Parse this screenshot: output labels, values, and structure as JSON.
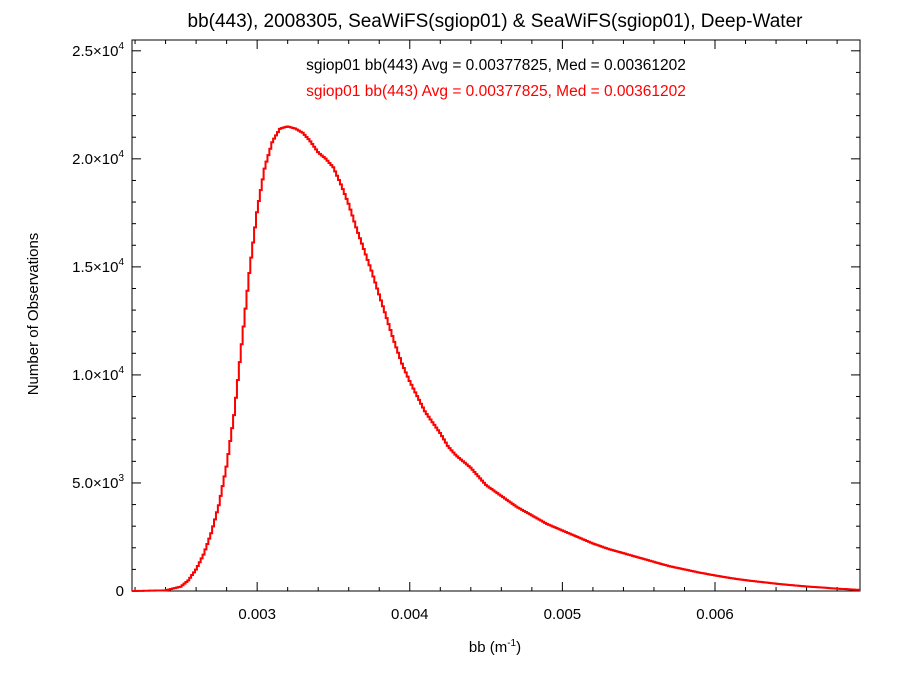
{
  "chart_data": {
    "type": "histogram",
    "title": "bb(443), 2008305, SeaWiFS(sgiop01) & SeaWiFS(sgiop01), Deep-Water",
    "xlabel": "bb (m",
    "xlabel_sup": "-1",
    "xlabel_close": ")",
    "ylabel": "Number of Observations",
    "xlim": [
      0.00218,
      0.00695
    ],
    "ylim": [
      0,
      25500
    ],
    "x_ticks": [
      {
        "value": 0.003,
        "label": "0.003"
      },
      {
        "value": 0.004,
        "label": "0.004"
      },
      {
        "value": 0.005,
        "label": "0.005"
      },
      {
        "value": 0.006,
        "label": "0.006"
      }
    ],
    "y_ticks": [
      {
        "value": 0,
        "mant": "0",
        "exp": ""
      },
      {
        "value": 5000,
        "mant": "5.0×10",
        "exp": "3"
      },
      {
        "value": 10000,
        "mant": "1.0×10",
        "exp": "4"
      },
      {
        "value": 15000,
        "mant": "1.5×10",
        "exp": "4"
      },
      {
        "value": 20000,
        "mant": "2.0×10",
        "exp": "4"
      },
      {
        "value": 25000,
        "mant": "2.5×10",
        "exp": "4"
      }
    ],
    "grid": false,
    "legend_position": "top-center",
    "series": [
      {
        "name": "sgiop01 bb(443) Avg = 0.00377825, Med = 0.00361202",
        "color": "#000000",
        "x": [
          0.0022,
          0.0024,
          0.0025,
          0.00255,
          0.0026,
          0.00265,
          0.0027,
          0.00275,
          0.0028,
          0.00285,
          0.0029,
          0.00295,
          0.003,
          0.00305,
          0.0031,
          0.00315,
          0.0032,
          0.00325,
          0.0033,
          0.00335,
          0.0034,
          0.00345,
          0.0035,
          0.00355,
          0.0036,
          0.00365,
          0.0037,
          0.00375,
          0.0038,
          0.00385,
          0.0039,
          0.00395,
          0.004,
          0.00405,
          0.0041,
          0.00415,
          0.0042,
          0.00425,
          0.0043,
          0.00435,
          0.0044,
          0.00445,
          0.0045,
          0.0046,
          0.0047,
          0.0048,
          0.0049,
          0.005,
          0.0051,
          0.0052,
          0.0053,
          0.0054,
          0.0055,
          0.0056,
          0.0057,
          0.0058,
          0.0059,
          0.006,
          0.0061,
          0.0062,
          0.0063,
          0.0064,
          0.0065,
          0.0066,
          0.0067,
          0.0068,
          0.0069,
          0.00695
        ],
        "y": [
          0,
          30,
          200,
          500,
          1000,
          1700,
          2700,
          4000,
          5800,
          8200,
          11500,
          14800,
          17600,
          19600,
          20800,
          21400,
          21500,
          21400,
          21200,
          20800,
          20300,
          20000,
          19600,
          18800,
          17900,
          16800,
          15800,
          14800,
          13700,
          12600,
          11500,
          10500,
          9700,
          9000,
          8300,
          7800,
          7300,
          6700,
          6300,
          6000,
          5700,
          5300,
          4900,
          4400,
          3900,
          3500,
          3100,
          2800,
          2500,
          2200,
          1950,
          1750,
          1550,
          1350,
          1150,
          1000,
          850,
          720,
          600,
          500,
          420,
          340,
          270,
          210,
          160,
          110,
          70,
          50
        ]
      },
      {
        "name": "sgiop01 bb(443) Avg = 0.00377825, Med = 0.00361202",
        "color": "#ff0000",
        "x": [
          0.0022,
          0.0024,
          0.0025,
          0.00255,
          0.0026,
          0.00265,
          0.0027,
          0.00275,
          0.0028,
          0.00285,
          0.0029,
          0.00295,
          0.003,
          0.00305,
          0.0031,
          0.00315,
          0.0032,
          0.00325,
          0.0033,
          0.00335,
          0.0034,
          0.00345,
          0.0035,
          0.00355,
          0.0036,
          0.00365,
          0.0037,
          0.00375,
          0.0038,
          0.00385,
          0.0039,
          0.00395,
          0.004,
          0.00405,
          0.0041,
          0.00415,
          0.0042,
          0.00425,
          0.0043,
          0.00435,
          0.0044,
          0.00445,
          0.0045,
          0.0046,
          0.0047,
          0.0048,
          0.0049,
          0.005,
          0.0051,
          0.0052,
          0.0053,
          0.0054,
          0.0055,
          0.0056,
          0.0057,
          0.0058,
          0.0059,
          0.006,
          0.0061,
          0.0062,
          0.0063,
          0.0064,
          0.0065,
          0.0066,
          0.0067,
          0.0068,
          0.0069,
          0.00695
        ],
        "y": [
          0,
          30,
          200,
          500,
          1000,
          1700,
          2700,
          4000,
          5800,
          8200,
          11500,
          14800,
          17600,
          19600,
          20800,
          21400,
          21500,
          21400,
          21200,
          20800,
          20300,
          20000,
          19600,
          18800,
          17900,
          16800,
          15800,
          14800,
          13700,
          12600,
          11500,
          10500,
          9700,
          9000,
          8300,
          7800,
          7300,
          6700,
          6300,
          6000,
          5700,
          5300,
          4900,
          4400,
          3900,
          3500,
          3100,
          2800,
          2500,
          2200,
          1950,
          1750,
          1550,
          1350,
          1150,
          1000,
          850,
          720,
          600,
          500,
          420,
          340,
          270,
          210,
          160,
          110,
          70,
          50
        ]
      }
    ]
  }
}
